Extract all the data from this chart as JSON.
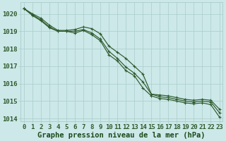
{
  "title": "Graphe pression niveau de la mer (hPa)",
  "bg_color": "#cce8e8",
  "grid_color": "#aacccc",
  "line_color": "#2d5a2d",
  "hours": [
    0,
    1,
    2,
    3,
    4,
    5,
    6,
    7,
    8,
    9,
    10,
    11,
    12,
    13,
    14,
    15,
    16,
    17,
    18,
    19,
    20,
    21,
    22,
    23
  ],
  "line_top": [
    1020.3,
    1020.0,
    1019.75,
    1019.35,
    1019.05,
    1019.05,
    1019.1,
    1019.25,
    1019.15,
    1018.85,
    1018.15,
    1017.8,
    1017.45,
    1017.0,
    1016.55,
    1015.4,
    1015.35,
    1015.3,
    1015.2,
    1015.1,
    1015.05,
    1015.1,
    1015.05,
    1014.55
  ],
  "line_mid": [
    1020.3,
    1019.95,
    1019.65,
    1019.25,
    1019.0,
    1019.0,
    1019.0,
    1019.1,
    1018.9,
    1018.55,
    1017.85,
    1017.45,
    1016.95,
    1016.6,
    1016.1,
    1015.4,
    1015.25,
    1015.2,
    1015.1,
    1015.0,
    1014.95,
    1015.0,
    1014.95,
    1014.35
  ],
  "line_bot": [
    1020.3,
    1019.9,
    1019.6,
    1019.2,
    1019.0,
    1019.0,
    1018.9,
    1019.05,
    1018.8,
    1018.45,
    1017.65,
    1017.3,
    1016.75,
    1016.45,
    1015.75,
    1015.3,
    1015.15,
    1015.1,
    1015.0,
    1014.9,
    1014.85,
    1014.9,
    1014.8,
    1014.1
  ],
  "ylim_min": 1013.85,
  "ylim_max": 1020.65,
  "yticks": [
    1014,
    1015,
    1016,
    1017,
    1018,
    1019,
    1020
  ],
  "tick_fontsize": 6.5,
  "label_fontsize": 7.5,
  "label_color": "#1a4a1a",
  "tick_color": "#2d5a2d"
}
